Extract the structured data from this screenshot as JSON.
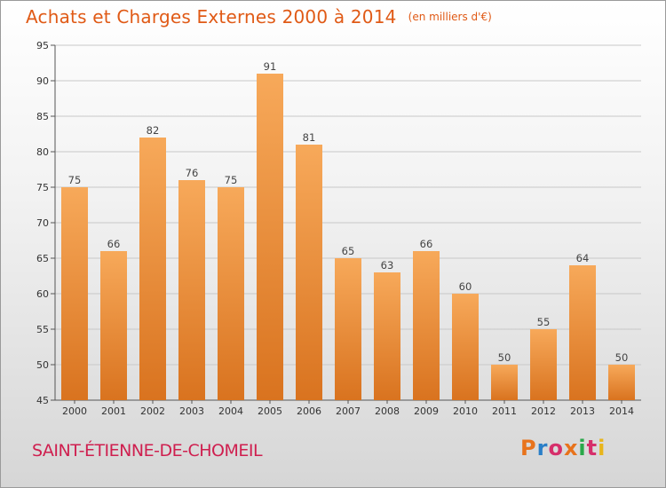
{
  "title": "Achats et Charges Externes 2000 à 2014",
  "unit": "(en milliers d'€)",
  "commune": "SAINT-ÉTIENNE-DE-CHOMEIL",
  "brand": {
    "letters": [
      "P",
      "r",
      "o",
      "x",
      "i",
      "t",
      "i"
    ],
    "colors": [
      "#e8731c",
      "#2a7fc8",
      "#d62f6b",
      "#e8731c",
      "#2aa84a",
      "#d62f6b",
      "#e8b51c"
    ]
  },
  "colors": {
    "bar_top": "#f7a95a",
    "bar_bottom": "#d9731f",
    "title": "#e05a16",
    "commune": "#cf1f4f"
  },
  "chart_data": {
    "type": "bar",
    "categories": [
      "2000",
      "2001",
      "2002",
      "2003",
      "2004",
      "2005",
      "2006",
      "2007",
      "2008",
      "2009",
      "2010",
      "2011",
      "2012",
      "2013",
      "2014"
    ],
    "values": [
      75,
      66,
      82,
      76,
      75,
      91,
      81,
      65,
      63,
      66,
      60,
      50,
      55,
      64,
      50
    ],
    "ylim": [
      45,
      95
    ],
    "yticks": [
      45,
      50,
      55,
      60,
      65,
      70,
      75,
      80,
      85,
      90,
      95
    ],
    "grid": true,
    "legend": "none"
  }
}
